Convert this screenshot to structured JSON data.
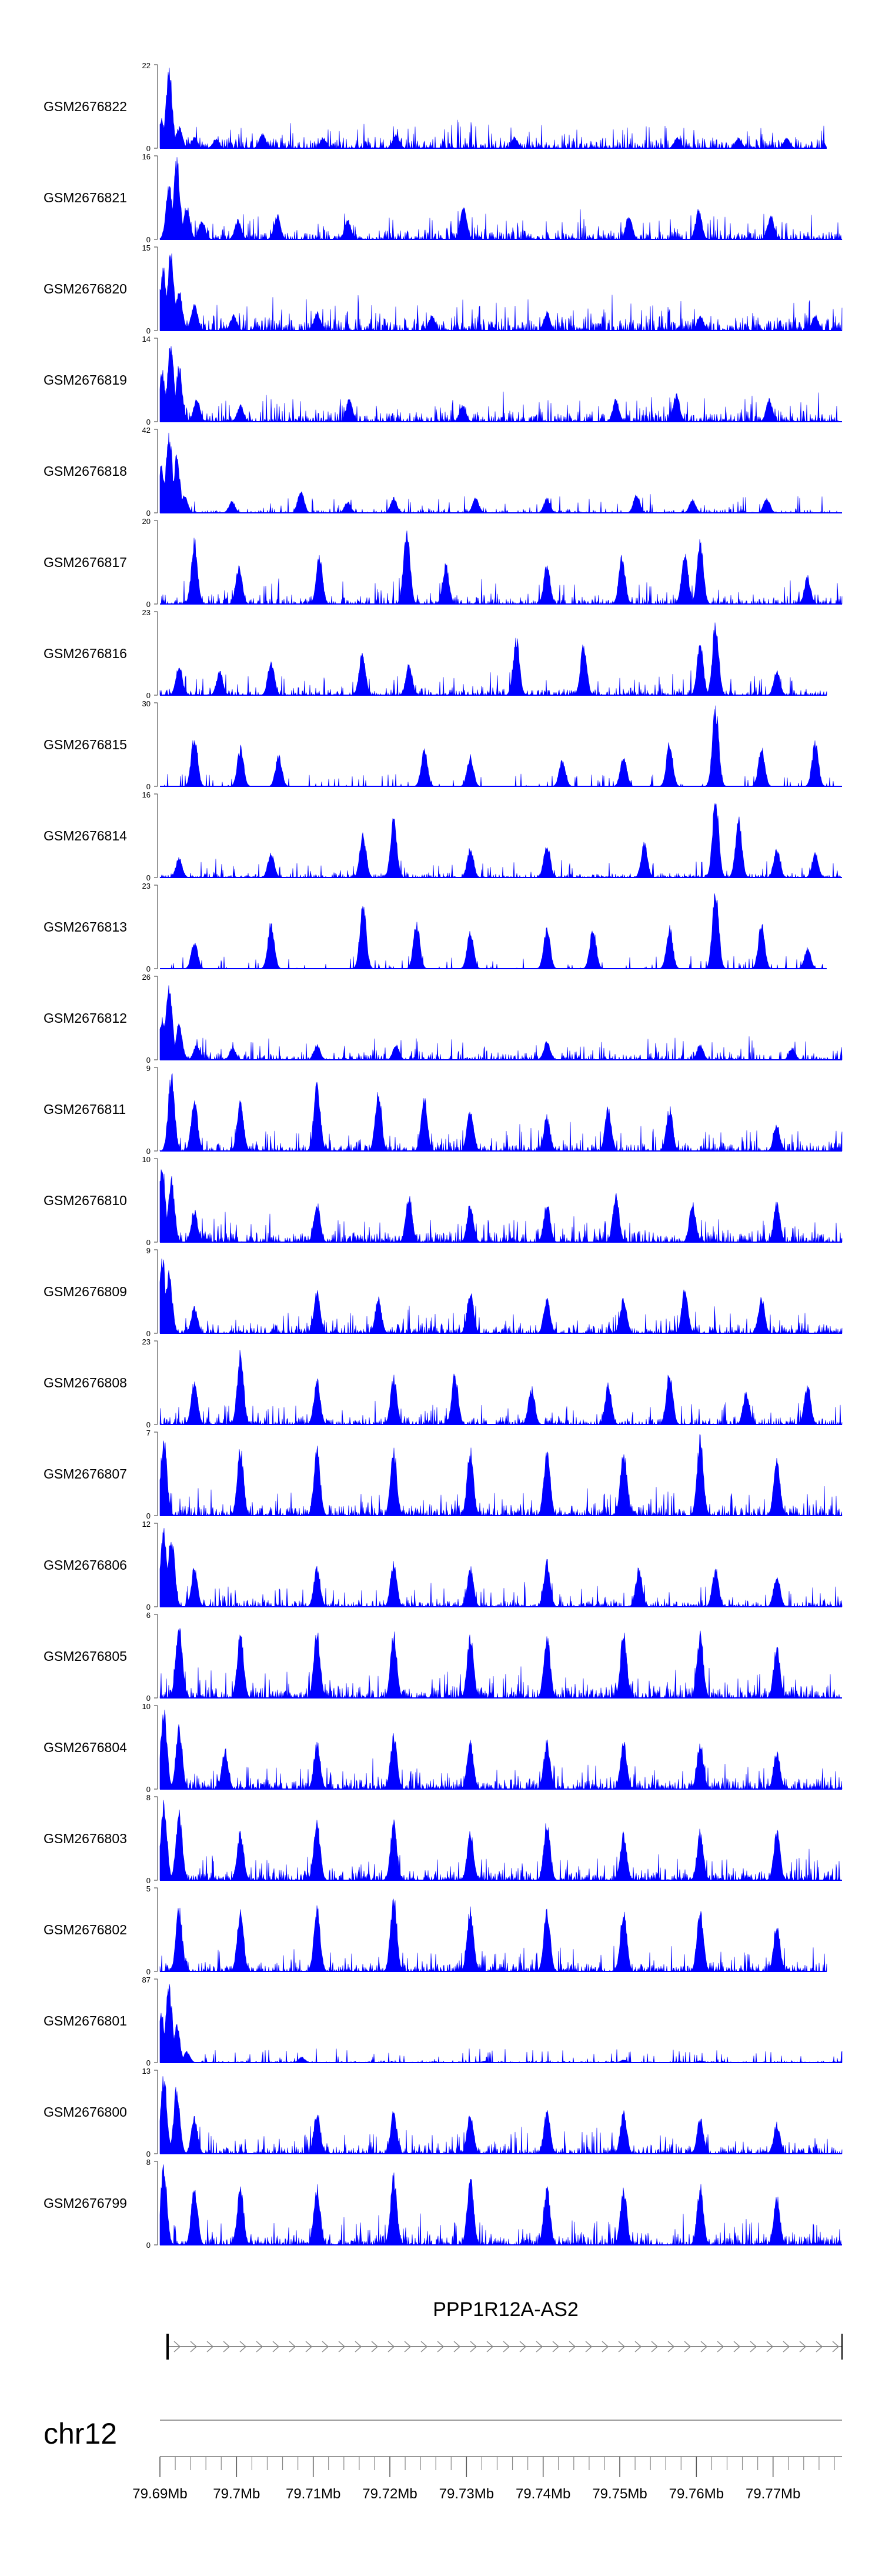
{
  "chart_data": {
    "type": "area",
    "color": "#0000ff",
    "genome": "chr12",
    "x_unit": "Mb",
    "xlim": [
      79.69,
      79.779
    ],
    "x_tick_labels": [
      "79.69Mb",
      "79.7Mb",
      "79.71Mb",
      "79.72Mb",
      "79.73Mb",
      "79.74Mb",
      "79.75Mb",
      "79.76Mb",
      "79.77Mb"
    ],
    "x_ticks": [
      79.69,
      79.7,
      79.71,
      79.72,
      79.73,
      79.74,
      79.75,
      79.76,
      79.77
    ],
    "gene": {
      "name": "PPP1R12A-AS2",
      "start": 79.691,
      "end": 79.779,
      "strand": "+"
    },
    "tracks": [
      {
        "name": "GSM2676822",
        "ymax": 22,
        "ymin": 0,
        "peaks": [
          [
            79.6902,
            8
          ],
          [
            79.6912,
            22
          ],
          [
            79.6925,
            6
          ],
          [
            79.6945,
            3
          ],
          [
            79.6973,
            2.5
          ],
          [
            79.7034,
            4
          ],
          [
            79.7113,
            3
          ],
          [
            79.7208,
            4
          ],
          [
            79.7363,
            3
          ],
          [
            79.7575,
            3
          ],
          [
            79.7655,
            3
          ],
          [
            79.7718,
            3
          ]
        ],
        "noise": 0.12,
        "density": 0.85,
        "end": 79.777
      },
      {
        "name": "GSM2676821",
        "ymax": 16,
        "ymin": 0,
        "peaks": [
          [
            79.6912,
            11
          ],
          [
            79.6922,
            16
          ],
          [
            79.6935,
            7
          ],
          [
            79.6955,
            4
          ],
          [
            79.7002,
            4
          ],
          [
            79.7053,
            5
          ],
          [
            79.7145,
            4
          ],
          [
            79.7296,
            7
          ],
          [
            79.7512,
            5
          ],
          [
            79.7603,
            6
          ],
          [
            79.7697,
            5
          ]
        ],
        "noise": 0.12,
        "density": 0.85,
        "end": 79.779
      },
      {
        "name": "GSM2676820",
        "ymax": 15,
        "ymin": 0,
        "peaks": [
          [
            79.6904,
            12
          ],
          [
            79.6914,
            15
          ],
          [
            79.6925,
            8
          ],
          [
            79.6945,
            5
          ],
          [
            79.6996,
            3
          ],
          [
            79.7105,
            3.5
          ],
          [
            79.7255,
            3
          ],
          [
            79.7405,
            3.5
          ],
          [
            79.7605,
            3
          ],
          [
            79.7755,
            3
          ]
        ],
        "noise": 0.15,
        "density": 0.95,
        "end": 79.779
      },
      {
        "name": "GSM2676819",
        "ymax": 14,
        "ymin": 0,
        "peaks": [
          [
            79.6903,
            9
          ],
          [
            79.6914,
            14
          ],
          [
            79.6925,
            10
          ],
          [
            79.6948,
            4
          ],
          [
            79.7005,
            3
          ],
          [
            79.7147,
            4
          ],
          [
            79.7295,
            3
          ],
          [
            79.7495,
            4
          ],
          [
            79.7574,
            5
          ],
          [
            79.7695,
            4
          ]
        ],
        "noise": 0.12,
        "density": 0.9,
        "end": 79.779
      },
      {
        "name": "GSM2676818",
        "ymax": 42,
        "ymin": 0,
        "peaks": [
          [
            79.6902,
            25
          ],
          [
            79.6912,
            42
          ],
          [
            79.6922,
            30
          ],
          [
            79.6932,
            10
          ],
          [
            79.6994,
            6
          ],
          [
            79.7084,
            12
          ],
          [
            79.7145,
            6
          ],
          [
            79.7205,
            8
          ],
          [
            79.7312,
            8
          ],
          [
            79.7405,
            8
          ],
          [
            79.7522,
            10
          ],
          [
            79.7595,
            7
          ],
          [
            79.7692,
            8
          ]
        ],
        "noise": 0.05,
        "density": 0.45,
        "end": 79.779
      },
      {
        "name": "GSM2676817",
        "ymax": 20,
        "ymin": 0,
        "peaks": [
          [
            79.6945,
            16
          ],
          [
            79.7003,
            10
          ],
          [
            79.7108,
            12
          ],
          [
            79.7222,
            20
          ],
          [
            79.7273,
            10
          ],
          [
            79.7405,
            10
          ],
          [
            79.7503,
            12
          ],
          [
            79.7585,
            14
          ],
          [
            79.7605,
            16
          ],
          [
            79.7745,
            7
          ]
        ],
        "noise": 0.1,
        "density": 0.7,
        "end": 79.779
      },
      {
        "name": "GSM2676816",
        "ymax": 23,
        "ymin": 0,
        "peaks": [
          [
            79.6925,
            9
          ],
          [
            79.6978,
            7
          ],
          [
            79.7045,
            10
          ],
          [
            79.7164,
            12
          ],
          [
            79.7225,
            9
          ],
          [
            79.7365,
            17
          ],
          [
            79.7453,
            15
          ],
          [
            79.7605,
            15
          ],
          [
            79.7625,
            21
          ],
          [
            79.7705,
            7
          ]
        ],
        "noise": 0.08,
        "density": 0.7,
        "end": 79.777
      },
      {
        "name": "GSM2676815",
        "ymax": 30,
        "ymin": 0,
        "peaks": [
          [
            79.6945,
            20
          ],
          [
            79.7005,
            15
          ],
          [
            79.7055,
            12
          ],
          [
            79.7245,
            14
          ],
          [
            79.7305,
            12
          ],
          [
            79.7425,
            10
          ],
          [
            79.7505,
            12
          ],
          [
            79.7565,
            17
          ],
          [
            79.7625,
            30
          ],
          [
            79.7685,
            15
          ],
          [
            79.7755,
            17
          ]
        ],
        "noise": 0.0,
        "density": 0.55,
        "end": 79.779
      },
      {
        "name": "GSM2676814",
        "ymax": 16,
        "ymin": 0,
        "peaks": [
          [
            79.6925,
            4
          ],
          [
            79.7045,
            5
          ],
          [
            79.7165,
            9
          ],
          [
            79.7205,
            12
          ],
          [
            79.7305,
            6
          ],
          [
            79.7405,
            7
          ],
          [
            79.7532,
            7
          ],
          [
            79.7625,
            16
          ],
          [
            79.7655,
            12
          ],
          [
            79.7705,
            6
          ],
          [
            79.7755,
            5
          ]
        ],
        "noise": 0.05,
        "density": 0.75,
        "end": 79.779
      },
      {
        "name": "GSM2676813",
        "ymax": 23,
        "ymin": 0,
        "peaks": [
          [
            79.6945,
            8
          ],
          [
            79.7045,
            14
          ],
          [
            79.7165,
            19
          ],
          [
            79.7235,
            14
          ],
          [
            79.7305,
            11
          ],
          [
            79.7405,
            12
          ],
          [
            79.7465,
            12
          ],
          [
            79.7565,
            12
          ],
          [
            79.7625,
            23
          ],
          [
            79.7685,
            13
          ],
          [
            79.7745,
            6
          ]
        ],
        "noise": 0.0,
        "density": 0.6,
        "end": 79.777
      },
      {
        "name": "GSM2676812",
        "ymax": 26,
        "ymin": 0,
        "peaks": [
          [
            79.6903,
            14
          ],
          [
            79.6912,
            26
          ],
          [
            79.6925,
            12
          ],
          [
            79.6948,
            5
          ],
          [
            79.6995,
            4
          ],
          [
            79.7105,
            5
          ],
          [
            79.7208,
            5
          ],
          [
            79.7405,
            6
          ],
          [
            79.7605,
            5
          ],
          [
            79.7725,
            4
          ]
        ],
        "noise": 0.08,
        "density": 0.75,
        "end": 79.779
      },
      {
        "name": "GSM2676811",
        "ymax": 9,
        "ymin": 0,
        "peaks": [
          [
            79.6915,
            9
          ],
          [
            79.6945,
            6
          ],
          [
            79.7005,
            6
          ],
          [
            79.7105,
            8
          ],
          [
            79.7185,
            7
          ],
          [
            79.7245,
            6
          ],
          [
            79.7305,
            5
          ],
          [
            79.7405,
            4
          ],
          [
            79.7485,
            5
          ],
          [
            79.7565,
            5
          ],
          [
            79.7705,
            3
          ]
        ],
        "noise": 0.1,
        "density": 0.85,
        "end": 79.779
      },
      {
        "name": "GSM2676810",
        "ymax": 10,
        "ymin": 0,
        "peaks": [
          [
            79.6903,
            10
          ],
          [
            79.6915,
            8
          ],
          [
            79.6945,
            4
          ],
          [
            79.7105,
            5
          ],
          [
            79.7225,
            6
          ],
          [
            79.7305,
            5
          ],
          [
            79.7405,
            5
          ],
          [
            79.7495,
            6
          ],
          [
            79.7595,
            5
          ],
          [
            79.7705,
            5
          ]
        ],
        "noise": 0.12,
        "density": 0.9,
        "end": 79.779
      },
      {
        "name": "GSM2676809",
        "ymax": 9,
        "ymin": 0,
        "peaks": [
          [
            79.6903,
            9
          ],
          [
            79.6912,
            7
          ],
          [
            79.6945,
            3
          ],
          [
            79.7105,
            5
          ],
          [
            79.7185,
            4
          ],
          [
            79.7305,
            5
          ],
          [
            79.7405,
            4
          ],
          [
            79.7505,
            4
          ],
          [
            79.7585,
            5
          ],
          [
            79.7685,
            4
          ]
        ],
        "noise": 0.1,
        "density": 0.85,
        "end": 79.779
      },
      {
        "name": "GSM2676808",
        "ymax": 23,
        "ymin": 0,
        "peaks": [
          [
            79.6945,
            13
          ],
          [
            79.7005,
            21
          ],
          [
            79.7105,
            13
          ],
          [
            79.7205,
            14
          ],
          [
            79.7285,
            15
          ],
          [
            79.7385,
            11
          ],
          [
            79.7485,
            12
          ],
          [
            79.7565,
            16
          ],
          [
            79.7665,
            10
          ],
          [
            79.7745,
            12
          ]
        ],
        "noise": 0.08,
        "density": 0.8,
        "end": 79.779
      },
      {
        "name": "GSM2676807",
        "ymax": 7,
        "ymin": 0,
        "peaks": [
          [
            79.6905,
            7
          ],
          [
            79.7005,
            6
          ],
          [
            79.7105,
            6
          ],
          [
            79.7205,
            6
          ],
          [
            79.7305,
            6
          ],
          [
            79.7405,
            6
          ],
          [
            79.7505,
            6
          ],
          [
            79.7605,
            7
          ],
          [
            79.7705,
            5
          ]
        ],
        "noise": 0.12,
        "density": 0.95,
        "end": 79.779
      },
      {
        "name": "GSM2676806",
        "ymax": 12,
        "ymin": 0,
        "peaks": [
          [
            79.6905,
            12
          ],
          [
            79.6915,
            11
          ],
          [
            79.6945,
            6
          ],
          [
            79.7105,
            6
          ],
          [
            79.7205,
            7
          ],
          [
            79.7305,
            6
          ],
          [
            79.7405,
            7
          ],
          [
            79.7525,
            6
          ],
          [
            79.7625,
            6
          ],
          [
            79.7705,
            5
          ]
        ],
        "noise": 0.08,
        "density": 0.85,
        "end": 79.779
      },
      {
        "name": "GSM2676805",
        "ymax": 6,
        "ymin": 0,
        "peaks": [
          [
            79.6925,
            6
          ],
          [
            79.7005,
            5
          ],
          [
            79.7105,
            5
          ],
          [
            79.7205,
            5
          ],
          [
            79.7305,
            5
          ],
          [
            79.7405,
            5
          ],
          [
            79.7505,
            5
          ],
          [
            79.7605,
            5
          ],
          [
            79.7705,
            4
          ]
        ],
        "noise": 0.15,
        "density": 1.0,
        "end": 79.779
      },
      {
        "name": "GSM2676804",
        "ymax": 10,
        "ymin": 0,
        "peaks": [
          [
            79.6905,
            10
          ],
          [
            79.6925,
            8
          ],
          [
            79.6985,
            5
          ],
          [
            79.7105,
            6
          ],
          [
            79.7205,
            7
          ],
          [
            79.7305,
            6
          ],
          [
            79.7405,
            6
          ],
          [
            79.7505,
            6
          ],
          [
            79.7605,
            6
          ],
          [
            79.7705,
            5
          ]
        ],
        "noise": 0.12,
        "density": 0.9,
        "end": 79.779
      },
      {
        "name": "GSM2676803",
        "ymax": 8,
        "ymin": 0,
        "peaks": [
          [
            79.6905,
            8
          ],
          [
            79.6925,
            7
          ],
          [
            79.7005,
            5
          ],
          [
            79.7105,
            6
          ],
          [
            79.7205,
            6
          ],
          [
            79.7305,
            5
          ],
          [
            79.7405,
            6
          ],
          [
            79.7505,
            5
          ],
          [
            79.7605,
            5
          ],
          [
            79.7705,
            5
          ]
        ],
        "noise": 0.12,
        "density": 0.95,
        "end": 79.779
      },
      {
        "name": "GSM2676802",
        "ymax": 5,
        "ymin": 0,
        "peaks": [
          [
            79.6925,
            4
          ],
          [
            79.7005,
            4
          ],
          [
            79.7105,
            4
          ],
          [
            79.7205,
            5
          ],
          [
            79.7305,
            4
          ],
          [
            79.7405,
            4
          ],
          [
            79.7505,
            4
          ],
          [
            79.7605,
            4
          ],
          [
            79.7705,
            3
          ]
        ],
        "noise": 0.1,
        "density": 0.9,
        "end": 79.777
      },
      {
        "name": "GSM2676801",
        "ymax": 87,
        "ymin": 0,
        "peaks": [
          [
            79.6902,
            55
          ],
          [
            79.6912,
            87
          ],
          [
            79.6922,
            40
          ],
          [
            79.6935,
            12
          ],
          [
            79.7085,
            6
          ],
          [
            79.7325,
            2
          ],
          [
            79.7505,
            3
          ],
          [
            79.7605,
            2
          ]
        ],
        "noise": 0.02,
        "density": 0.75,
        "end": 79.779
      },
      {
        "name": "GSM2676800",
        "ymax": 13,
        "ymin": 0,
        "peaks": [
          [
            79.6905,
            13
          ],
          [
            79.6922,
            11
          ],
          [
            79.6945,
            6
          ],
          [
            79.7105,
            7
          ],
          [
            79.7205,
            7
          ],
          [
            79.7305,
            7
          ],
          [
            79.7405,
            7
          ],
          [
            79.7505,
            7
          ],
          [
            79.7605,
            6
          ],
          [
            79.7705,
            5
          ]
        ],
        "noise": 0.1,
        "density": 0.85,
        "end": 79.779
      },
      {
        "name": "GSM2676799",
        "ymax": 8,
        "ymin": 0,
        "peaks": [
          [
            79.6905,
            8
          ],
          [
            79.6945,
            6
          ],
          [
            79.7005,
            6
          ],
          [
            79.7105,
            6
          ],
          [
            79.7205,
            7
          ],
          [
            79.7305,
            7
          ],
          [
            79.7405,
            6
          ],
          [
            79.7505,
            6
          ],
          [
            79.7605,
            6
          ],
          [
            79.7705,
            5
          ]
        ],
        "noise": 0.12,
        "density": 0.95,
        "end": 79.779
      }
    ]
  }
}
